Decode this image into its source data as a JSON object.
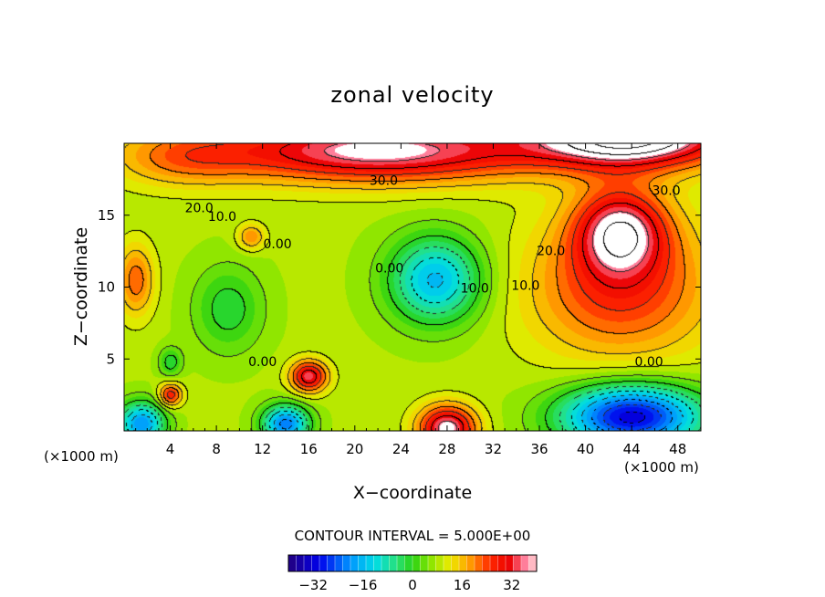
{
  "chart_data": {
    "type": "heatmap",
    "title": "zonal velocity",
    "xlabel": "X−coordinate",
    "ylabel": "Z−coordinate",
    "x_unit_left": "(×1000 m)",
    "x_unit_right": "(×1000 m)",
    "xlim": [
      0,
      50
    ],
    "ylim": [
      0,
      20
    ],
    "xticks": [
      4,
      8,
      12,
      16,
      20,
      24,
      28,
      32,
      36,
      40,
      44,
      48
    ],
    "yticks": [
      5,
      10,
      15
    ],
    "contour_interval_text": "CONTOUR INTERVAL = 5.000E+00",
    "contour_interval": 5,
    "colorbar": {
      "range": [
        -40,
        40
      ],
      "tick_values": [
        -32,
        -16,
        0,
        16,
        32
      ],
      "tick_labels": [
        "−32",
        "−16",
        "0",
        "16",
        "32"
      ]
    },
    "contour_labels": [
      {
        "text": "30.0",
        "x": 22.5,
        "z": 17.3
      },
      {
        "text": "30.0",
        "x": 47.0,
        "z": 16.6
      },
      {
        "text": "20.0",
        "x": 6.5,
        "z": 15.4
      },
      {
        "text": "10.0",
        "x": 8.5,
        "z": 14.8
      },
      {
        "text": "20.0",
        "x": 37.0,
        "z": 12.4
      },
      {
        "text": "0.00",
        "x": 13.3,
        "z": 12.9
      },
      {
        "text": "0.00",
        "x": 23.0,
        "z": 11.2
      },
      {
        "text": "10.0",
        "x": 30.4,
        "z": 9.8
      },
      {
        "text": "10.0",
        "x": 34.8,
        "z": 10.0
      },
      {
        "text": "0.00",
        "x": 12.0,
        "z": 4.7
      },
      {
        "text": "0.00",
        "x": 45.5,
        "z": 4.7
      }
    ],
    "field_sources": [
      {
        "x": 44,
        "z": 20.5,
        "amp": 38,
        "sx": 9,
        "sz": 2.2
      },
      {
        "x": 22,
        "z": 19.5,
        "amp": 30,
        "sx": 14,
        "sz": 2.2
      },
      {
        "x": 5,
        "z": 19.0,
        "amp": 10,
        "sx": 6,
        "sz": 2
      },
      {
        "x": 43,
        "z": 14.0,
        "amp": 25,
        "sx": 4,
        "sz": 3
      },
      {
        "x": 43,
        "z": 10.0,
        "amp": 18,
        "sx": 8,
        "sz": 5
      },
      {
        "x": 1,
        "z": 10.5,
        "amp": 14,
        "sx": 1.6,
        "sz": 2.5
      },
      {
        "x": 27,
        "z": 10.5,
        "amp": -24,
        "sx": 4,
        "sz": 3
      },
      {
        "x": 44,
        "z": 1.0,
        "amp": -40,
        "sx": 6,
        "sz": 2.2
      },
      {
        "x": 1.5,
        "z": 0.5,
        "amp": -28,
        "sx": 2,
        "sz": 1.5
      },
      {
        "x": 14,
        "z": 0.5,
        "amp": -30,
        "sx": 2,
        "sz": 1.3
      },
      {
        "x": 28,
        "z": 0.2,
        "amp": 30,
        "sx": 2.5,
        "sz": 1.6
      },
      {
        "x": 16,
        "z": 3.8,
        "amp": 26,
        "sx": 1.6,
        "sz": 1.1
      },
      {
        "x": 4,
        "z": 2.5,
        "amp": 20,
        "sx": 1,
        "sz": 0.8
      },
      {
        "x": 9,
        "z": 8.5,
        "amp": -10,
        "sx": 3,
        "sz": 3
      },
      {
        "x": 4,
        "z": 4.8,
        "amp": -10,
        "sx": 1,
        "sz": 1
      },
      {
        "x": 11,
        "z": 13.5,
        "amp": 12,
        "sx": 1.2,
        "sz": 0.9
      }
    ],
    "field_base": 8
  }
}
